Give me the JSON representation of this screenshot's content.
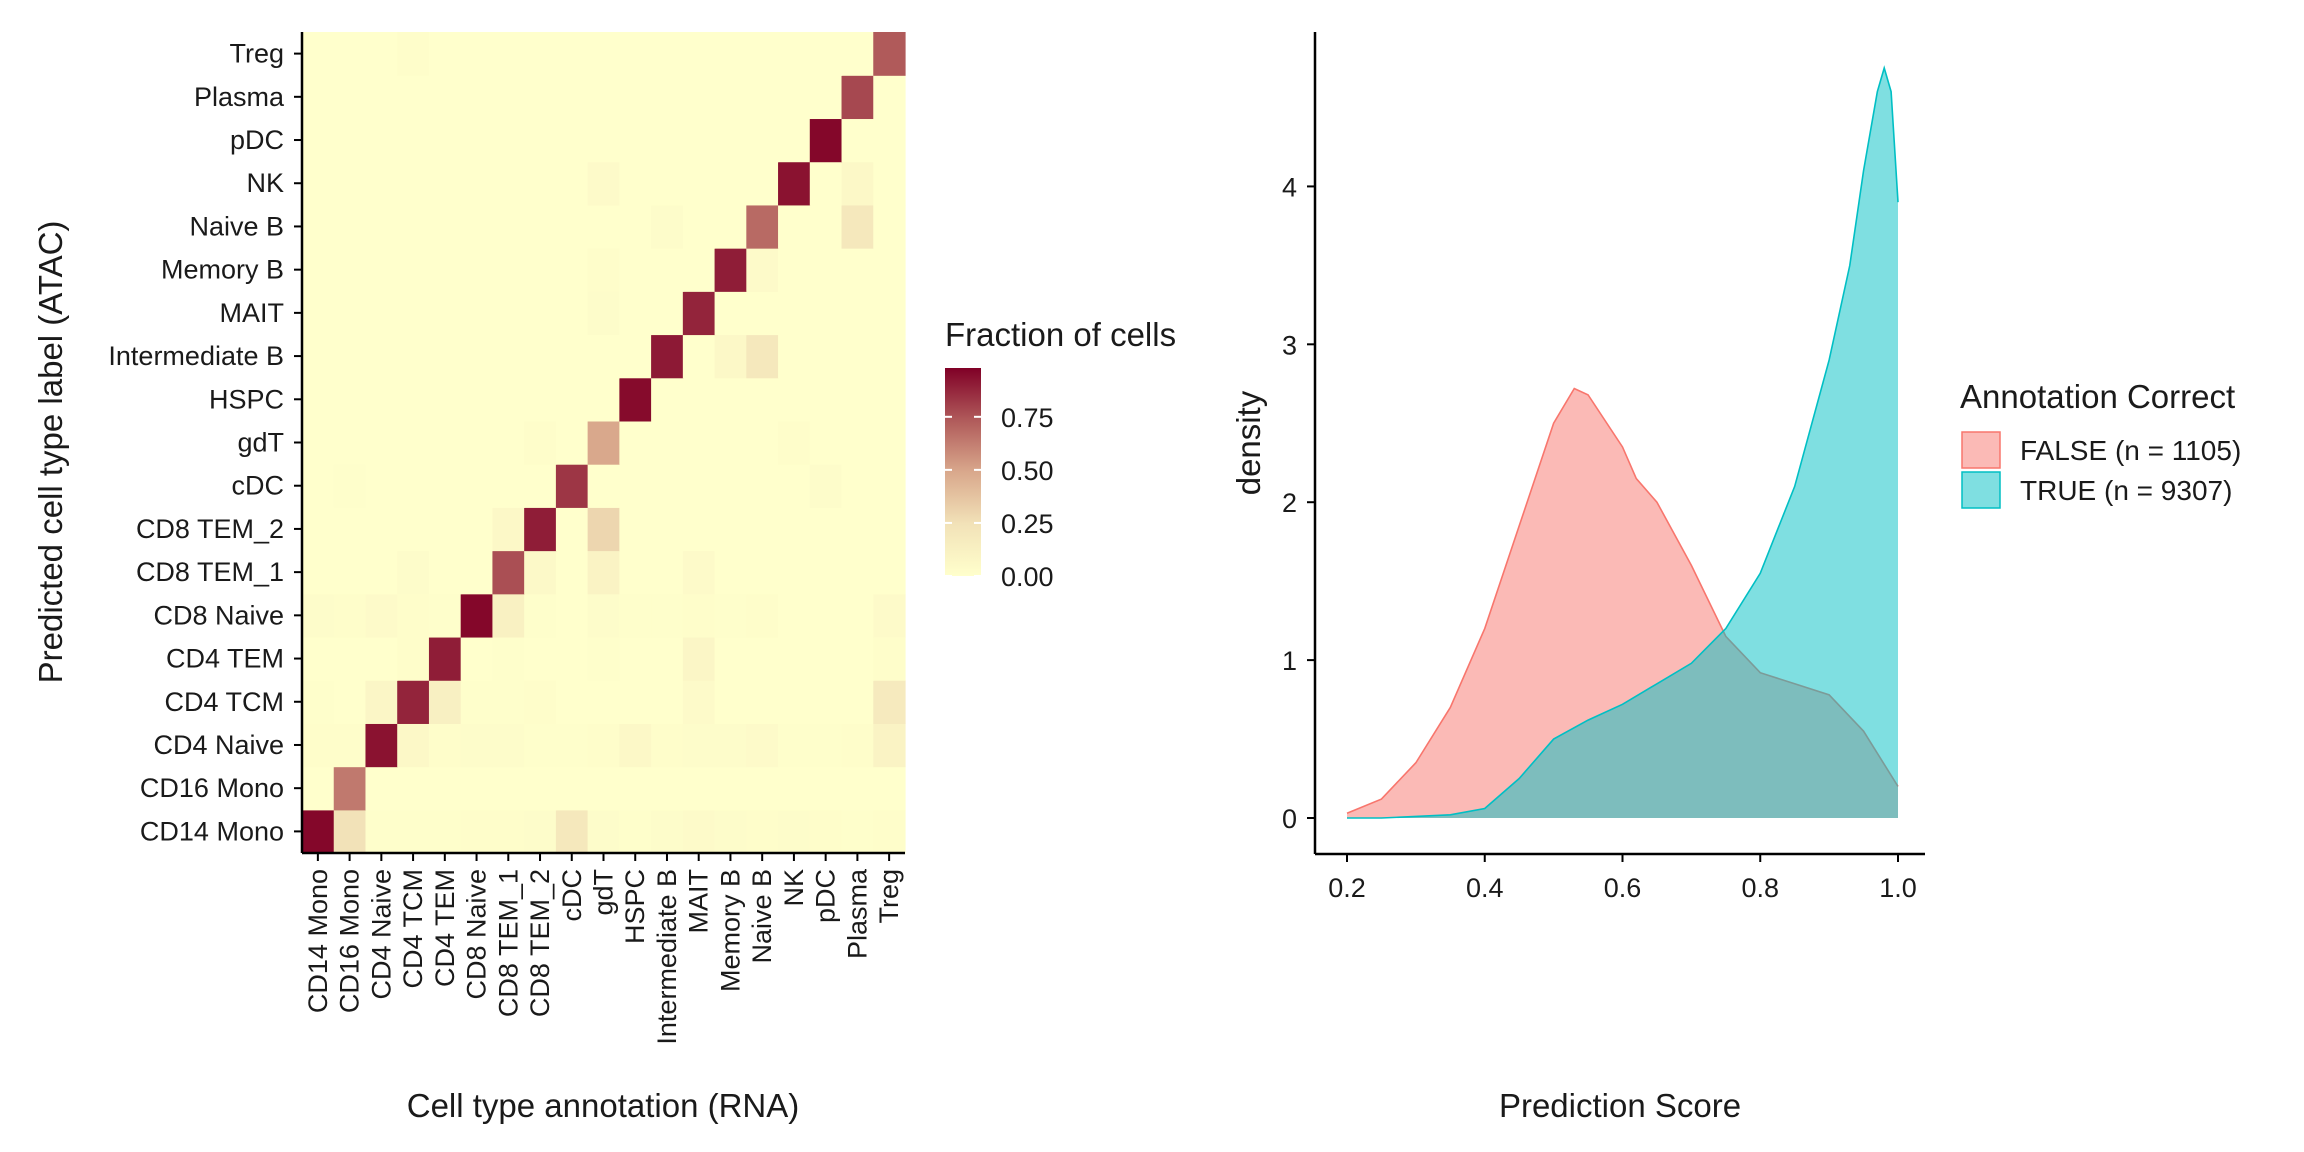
{
  "chart_data": [
    {
      "type": "heatmap",
      "xlabel": "Cell type annotation (RNA)",
      "ylabel": "Predicted cell type label (ATAC)",
      "x_categories": [
        "CD14 Mono",
        "CD16 Mono",
        "CD4 Naive",
        "CD4 TCM",
        "CD4 TEM",
        "CD8 Naive",
        "CD8 TEM_1",
        "CD8 TEM_2",
        "cDC",
        "gdT",
        "HSPC",
        "Intermediate B",
        "MAIT",
        "Memory B",
        "Naive B",
        "NK",
        "pDC",
        "Plasma",
        "Treg"
      ],
      "y_categories": [
        "CD14 Mono",
        "CD16 Mono",
        "CD4 Naive",
        "CD4 TCM",
        "CD4 TEM",
        "CD8 Naive",
        "CD8 TEM_1",
        "CD8 TEM_2",
        "cDC",
        "gdT",
        "HSPC",
        "Intermediate B",
        "MAIT",
        "Memory B",
        "Naive B",
        "NK",
        "pDC",
        "Plasma",
        "Treg"
      ],
      "values": [
        [
          0.98,
          0.25,
          0.01,
          0.01,
          0.01,
          0.02,
          0.02,
          0.03,
          0.2,
          0.03,
          0.01,
          0.03,
          0.04,
          0.03,
          0.02,
          0.03,
          0.02,
          0.01,
          0.02
        ],
        [
          0.0,
          0.65,
          0.0,
          0.0,
          0.0,
          0.0,
          0.0,
          0.0,
          0.0,
          0.0,
          0.0,
          0.0,
          0.0,
          0.0,
          0.0,
          0.0,
          0.0,
          0.0,
          0.0
        ],
        [
          0.02,
          0.02,
          0.95,
          0.06,
          0.02,
          0.03,
          0.03,
          0.01,
          0.01,
          0.02,
          0.06,
          0.02,
          0.03,
          0.03,
          0.04,
          0.01,
          0.01,
          0.02,
          0.1
        ],
        [
          0.01,
          0.0,
          0.08,
          0.9,
          0.13,
          0.01,
          0.01,
          0.02,
          0.0,
          0.0,
          0.0,
          0.0,
          0.04,
          0.0,
          0.0,
          0.0,
          0.0,
          0.0,
          0.18
        ],
        [
          0.0,
          0.0,
          0.0,
          0.02,
          0.92,
          0.0,
          0.01,
          0.0,
          0.0,
          0.01,
          0.0,
          0.0,
          0.08,
          0.0,
          0.0,
          0.0,
          0.0,
          0.0,
          0.02
        ],
        [
          0.03,
          0.02,
          0.04,
          0.02,
          0.01,
          0.98,
          0.12,
          0.01,
          0.0,
          0.03,
          0.01,
          0.01,
          0.02,
          0.01,
          0.02,
          0.0,
          0.0,
          0.0,
          0.04
        ],
        [
          0.0,
          0.0,
          0.0,
          0.03,
          0.0,
          0.0,
          0.78,
          0.05,
          0.0,
          0.1,
          0.0,
          0.0,
          0.04,
          0.0,
          0.0,
          0.0,
          0.0,
          0.0,
          0.0
        ],
        [
          0.0,
          0.0,
          0.0,
          0.0,
          0.0,
          0.0,
          0.06,
          0.92,
          0.0,
          0.3,
          0.0,
          0.0,
          0.0,
          0.0,
          0.0,
          0.0,
          0.0,
          0.0,
          0.0
        ],
        [
          0.0,
          0.01,
          0.0,
          0.0,
          0.0,
          0.0,
          0.0,
          0.0,
          0.85,
          0.0,
          0.0,
          0.0,
          0.0,
          0.0,
          0.0,
          0.0,
          0.03,
          0.0,
          0.0
        ],
        [
          0.0,
          0.0,
          0.0,
          0.0,
          0.0,
          0.0,
          0.0,
          0.02,
          0.0,
          0.5,
          0.0,
          0.0,
          0.0,
          0.0,
          0.0,
          0.02,
          0.0,
          0.0,
          0.0
        ],
        [
          0.0,
          0.0,
          0.0,
          0.0,
          0.0,
          0.0,
          0.0,
          0.0,
          0.0,
          0.0,
          0.97,
          0.0,
          0.0,
          0.0,
          0.0,
          0.0,
          0.0,
          0.0,
          0.0
        ],
        [
          0.0,
          0.0,
          0.0,
          0.0,
          0.0,
          0.0,
          0.0,
          0.0,
          0.0,
          0.0,
          0.0,
          0.93,
          0.0,
          0.06,
          0.2,
          0.0,
          0.0,
          0.0,
          0.0
        ],
        [
          0.0,
          0.0,
          0.0,
          0.0,
          0.0,
          0.0,
          0.0,
          0.0,
          0.0,
          0.03,
          0.0,
          0.0,
          0.9,
          0.0,
          0.0,
          0.0,
          0.0,
          0.0,
          0.0
        ],
        [
          0.0,
          0.0,
          0.0,
          0.0,
          0.0,
          0.0,
          0.0,
          0.0,
          0.0,
          0.02,
          0.0,
          0.0,
          0.0,
          0.92,
          0.04,
          0.0,
          0.0,
          0.0,
          0.0
        ],
        [
          0.0,
          0.0,
          0.0,
          0.0,
          0.0,
          0.0,
          0.0,
          0.0,
          0.0,
          0.0,
          0.0,
          0.03,
          0.0,
          0.0,
          0.7,
          0.0,
          0.0,
          0.2,
          0.0
        ],
        [
          0.0,
          0.0,
          0.0,
          0.0,
          0.0,
          0.0,
          0.0,
          0.0,
          0.0,
          0.04,
          0.0,
          0.0,
          0.0,
          0.0,
          0.0,
          0.95,
          0.0,
          0.06,
          0.0
        ],
        [
          0.0,
          0.0,
          0.0,
          0.0,
          0.0,
          0.0,
          0.0,
          0.0,
          0.0,
          0.0,
          0.0,
          0.0,
          0.0,
          0.0,
          0.0,
          0.0,
          0.98,
          0.0,
          0.0
        ],
        [
          0.0,
          0.0,
          0.0,
          0.0,
          0.0,
          0.0,
          0.0,
          0.0,
          0.0,
          0.0,
          0.0,
          0.0,
          0.0,
          0.0,
          0.0,
          0.0,
          0.0,
          0.8,
          0.0
        ],
        [
          0.0,
          0.0,
          0.0,
          0.02,
          0.0,
          0.0,
          0.0,
          0.0,
          0.0,
          0.0,
          0.0,
          0.0,
          0.0,
          0.0,
          0.0,
          0.0,
          0.0,
          0.0,
          0.75
        ]
      ],
      "color_scale": {
        "low": "#FFFFCC",
        "mid_low": "#F2E2B8",
        "mid": "#D9A88C",
        "mid_high": "#B05A5A",
        "high": "#800026",
        "limits": [
          0,
          1
        ]
      },
      "legend": {
        "title": "Fraction of cells",
        "ticks": [
          "0.00",
          "0.25",
          "0.50",
          "0.75"
        ],
        "tick_values": [
          0,
          0.25,
          0.5,
          0.75
        ],
        "max_value": 0.98
      }
    },
    {
      "type": "area",
      "subtype": "density",
      "xlabel": "Prediction Score",
      "ylabel": "density",
      "xlim": [
        0.2,
        1.0
      ],
      "ylim": [
        0,
        4.75
      ],
      "x_ticks": [
        "0.2",
        "0.4",
        "0.6",
        "0.8",
        "1.0"
      ],
      "x_tick_values": [
        0.2,
        0.4,
        0.6,
        0.8,
        1.0
      ],
      "y_ticks": [
        "0",
        "1",
        "2",
        "3",
        "4"
      ],
      "y_tick_values": [
        0,
        1,
        2,
        3,
        4
      ],
      "legend": {
        "title": "Annotation Correct",
        "position": "right"
      },
      "series": [
        {
          "name": "FALSE (n = 1105)",
          "color": "#F8766D",
          "fill_alpha": 0.5,
          "x": [
            0.2,
            0.25,
            0.3,
            0.35,
            0.4,
            0.45,
            0.5,
            0.53,
            0.55,
            0.6,
            0.62,
            0.65,
            0.7,
            0.75,
            0.8,
            0.85,
            0.9,
            0.95,
            1.0
          ],
          "y": [
            0.03,
            0.12,
            0.35,
            0.7,
            1.2,
            1.85,
            2.5,
            2.72,
            2.68,
            2.35,
            2.15,
            2.0,
            1.6,
            1.15,
            0.92,
            0.85,
            0.78,
            0.55,
            0.2
          ]
        },
        {
          "name": "TRUE (n = 9307)",
          "color": "#00BFC4",
          "fill_alpha": 0.5,
          "x": [
            0.2,
            0.25,
            0.3,
            0.35,
            0.4,
            0.45,
            0.5,
            0.55,
            0.6,
            0.65,
            0.7,
            0.75,
            0.8,
            0.85,
            0.9,
            0.93,
            0.95,
            0.97,
            0.98,
            0.99,
            1.0
          ],
          "y": [
            0.0,
            0.0,
            0.01,
            0.02,
            0.06,
            0.25,
            0.5,
            0.62,
            0.72,
            0.85,
            0.98,
            1.2,
            1.55,
            2.1,
            2.9,
            3.5,
            4.1,
            4.6,
            4.75,
            4.6,
            3.9
          ]
        }
      ]
    }
  ]
}
